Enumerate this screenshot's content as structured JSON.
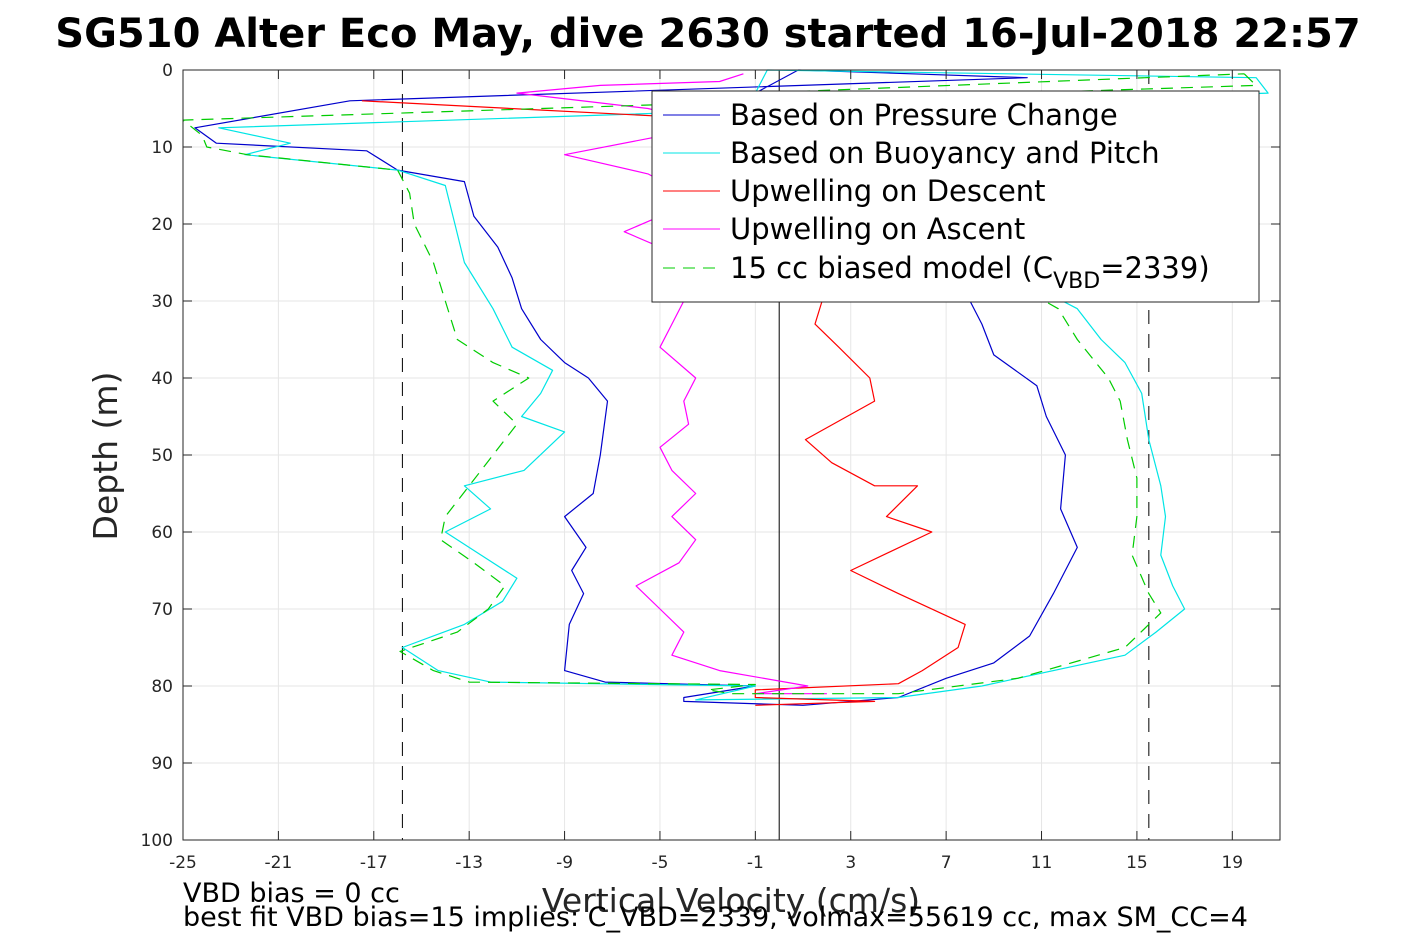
{
  "chart_data": {
    "type": "line",
    "title": "SG510 Alter Eco May, dive 2630 started 16-Jul-2018 22:57",
    "xlabel": "Vertical Velocity (cm/s)",
    "ylabel": "Depth (m)",
    "xlim": [
      -25,
      21
    ],
    "ylim": [
      0,
      100
    ],
    "y_reversed": true,
    "grid": true,
    "xticks": [
      -25,
      -21,
      -17,
      -13,
      -9,
      -5,
      -1,
      3,
      7,
      11,
      15,
      19
    ],
    "yticks": [
      0,
      10,
      20,
      30,
      40,
      50,
      60,
      70,
      80,
      90,
      100
    ],
    "vlines": [
      {
        "x": -15.8,
        "style": "dashed",
        "color": "#000000"
      },
      {
        "x": 15.5,
        "style": "dashed",
        "color": "#000000"
      },
      {
        "x": 0.0,
        "style": "solid",
        "color": "#000000"
      }
    ],
    "legend_position": "top-right",
    "series": [
      {
        "name": "Based on Pressure Change",
        "color": "#0000cc",
        "dash": "solid",
        "points": [
          [
            0.8,
            0
          ],
          [
            10.4,
            1
          ],
          [
            -18,
            4
          ],
          [
            -24.5,
            7.5
          ],
          [
            -23.6,
            9.5
          ],
          [
            -17.3,
            10.5
          ],
          [
            -16,
            13
          ],
          [
            -13.2,
            14.5
          ],
          [
            -12.8,
            19
          ],
          [
            -11.8,
            23
          ],
          [
            -11.2,
            27
          ],
          [
            -10.8,
            31
          ],
          [
            -10,
            35
          ],
          [
            -9,
            38
          ],
          [
            -8,
            40
          ],
          [
            -7.2,
            43
          ],
          [
            -7.5,
            50
          ],
          [
            -7.8,
            55
          ],
          [
            -9,
            58
          ],
          [
            -8.1,
            62
          ],
          [
            -8.7,
            65
          ],
          [
            -8.2,
            68
          ],
          [
            -8.8,
            72
          ],
          [
            -9,
            78
          ],
          [
            -7.3,
            79.5
          ],
          [
            -1,
            80
          ],
          [
            -4,
            81.5
          ],
          [
            -4,
            82
          ],
          [
            1,
            82.5
          ],
          [
            5,
            81.5
          ],
          [
            7,
            79
          ],
          [
            9,
            77
          ],
          [
            10.5,
            73.5
          ],
          [
            11.5,
            68
          ],
          [
            12.5,
            62
          ],
          [
            11.8,
            57
          ],
          [
            12,
            50
          ],
          [
            11.2,
            45
          ],
          [
            10.8,
            41
          ],
          [
            9,
            37
          ],
          [
            8.5,
            33
          ],
          [
            8,
            30
          ],
          [
            2,
            14
          ],
          [
            -1,
            3
          ],
          [
            0.8,
            0
          ]
        ]
      },
      {
        "name": "Based on Buoyancy and Pitch",
        "color": "#00e5e5",
        "dash": "solid",
        "points": [
          [
            -0.5,
            0
          ],
          [
            20,
            1
          ],
          [
            20.5,
            3
          ],
          [
            -23.5,
            7.5
          ],
          [
            -20.5,
            9.5
          ],
          [
            -22.4,
            11
          ],
          [
            -16,
            13
          ],
          [
            -14,
            15
          ],
          [
            -13.6,
            20
          ],
          [
            -13.2,
            25
          ],
          [
            -12,
            31
          ],
          [
            -11.2,
            36
          ],
          [
            -9.5,
            39
          ],
          [
            -10,
            42
          ],
          [
            -10.8,
            45
          ],
          [
            -9,
            47
          ],
          [
            -10.7,
            52
          ],
          [
            -13.2,
            54
          ],
          [
            -12.1,
            57
          ],
          [
            -14,
            60
          ],
          [
            -12.5,
            63
          ],
          [
            -11,
            66
          ],
          [
            -11.6,
            69
          ],
          [
            -13.2,
            72
          ],
          [
            -15.8,
            75
          ],
          [
            -14.3,
            78
          ],
          [
            -12.1,
            79.5
          ],
          [
            -1,
            80
          ],
          [
            -3.5,
            81.8
          ],
          [
            5,
            81.5
          ],
          [
            8.5,
            80
          ],
          [
            14.5,
            76
          ],
          [
            15.8,
            73
          ],
          [
            17,
            70
          ],
          [
            16.5,
            67
          ],
          [
            16,
            63
          ],
          [
            16.2,
            58
          ],
          [
            16,
            54
          ],
          [
            15.5,
            48
          ],
          [
            15.2,
            42
          ],
          [
            14.5,
            38
          ],
          [
            13.5,
            35
          ],
          [
            12.5,
            31
          ],
          [
            2,
            14
          ],
          [
            -1,
            3
          ],
          [
            -0.5,
            0
          ]
        ]
      },
      {
        "name": "Upwelling on Descent",
        "color": "#ff0000",
        "dash": "solid",
        "points": [
          [
            -17.5,
            4
          ],
          [
            -5,
            6
          ],
          [
            0,
            8
          ],
          [
            1,
            10
          ],
          [
            2,
            14
          ],
          [
            2.5,
            20
          ],
          [
            2,
            25
          ],
          [
            1.8,
            30
          ],
          [
            1.5,
            33
          ],
          [
            2.5,
            36
          ],
          [
            3.8,
            40
          ],
          [
            4,
            43
          ],
          [
            1.1,
            48
          ],
          [
            2.2,
            51
          ],
          [
            4,
            54
          ],
          [
            5.8,
            54
          ],
          [
            4.5,
            58
          ],
          [
            6.4,
            60
          ],
          [
            3,
            65
          ],
          [
            5,
            68
          ],
          [
            7.8,
            72
          ],
          [
            7.5,
            75
          ],
          [
            6,
            78
          ],
          [
            5,
            79.7
          ],
          [
            -1,
            80.5
          ],
          [
            -1,
            81.5
          ],
          [
            4,
            82
          ],
          [
            -1,
            82.5
          ]
        ]
      },
      {
        "name": "Upwelling on Ascent",
        "color": "#ff00ff",
        "dash": "solid",
        "points": [
          [
            -1.5,
            0.5
          ],
          [
            -2.5,
            1.5
          ],
          [
            -7.5,
            2
          ],
          [
            -11,
            3
          ],
          [
            -5.5,
            5
          ],
          [
            -3.5,
            6.5
          ],
          [
            -4,
            8
          ],
          [
            -9,
            11
          ],
          [
            -5.5,
            13.5
          ],
          [
            -4,
            16
          ],
          [
            -5,
            19
          ],
          [
            -6.5,
            21
          ],
          [
            -5,
            23
          ],
          [
            -4,
            25
          ],
          [
            -3.5,
            27
          ],
          [
            -4,
            30
          ],
          [
            -4.5,
            33
          ],
          [
            -5,
            36
          ],
          [
            -3.5,
            40
          ],
          [
            -4,
            43
          ],
          [
            -3.8,
            46
          ],
          [
            -5,
            49
          ],
          [
            -4.5,
            52
          ],
          [
            -3.5,
            55
          ],
          [
            -4.5,
            58
          ],
          [
            -3.5,
            61
          ],
          [
            -4.2,
            64
          ],
          [
            -6,
            67
          ],
          [
            -5,
            70
          ],
          [
            -4,
            73
          ],
          [
            -4.5,
            76
          ],
          [
            -2.5,
            78
          ],
          [
            1.2,
            80
          ],
          [
            -1,
            81
          ],
          [
            2,
            81
          ]
        ]
      },
      {
        "name": "15 cc biased model (C_VBD=2339)",
        "color": "#00cc00",
        "dash": "dashed",
        "points": [
          [
            19.5,
            0.5
          ],
          [
            20,
            2
          ],
          [
            -25,
            6.5
          ],
          [
            -24.2,
            8.5
          ],
          [
            -24,
            10
          ],
          [
            -22.3,
            11
          ],
          [
            -16,
            13
          ],
          [
            -15.5,
            16
          ],
          [
            -15.3,
            20
          ],
          [
            -14.5,
            25
          ],
          [
            -14,
            30
          ],
          [
            -13.5,
            35
          ],
          [
            -12,
            38
          ],
          [
            -10.5,
            40
          ],
          [
            -12,
            43
          ],
          [
            -11,
            46
          ],
          [
            -12,
            50
          ],
          [
            -13,
            54
          ],
          [
            -14,
            58
          ],
          [
            -14.2,
            61
          ],
          [
            -12.8,
            64
          ],
          [
            -11.5,
            67
          ],
          [
            -12.2,
            70
          ],
          [
            -13.5,
            73
          ],
          [
            -15.9,
            75.5
          ],
          [
            -14.5,
            78
          ],
          [
            -13,
            79.5
          ],
          [
            -1,
            79.8
          ],
          [
            -3,
            80.5
          ],
          [
            -2,
            81
          ],
          [
            5,
            81
          ],
          [
            10,
            79
          ],
          [
            14.5,
            75
          ],
          [
            16,
            70.5
          ],
          [
            15.5,
            68
          ],
          [
            14.8,
            63
          ],
          [
            15,
            58
          ],
          [
            15,
            53
          ],
          [
            14.6,
            48
          ],
          [
            14.3,
            43
          ],
          [
            13.8,
            40
          ],
          [
            12.5,
            35
          ],
          [
            11.7,
            31
          ],
          [
            2,
            14
          ],
          [
            -1,
            3
          ],
          [
            19.5,
            0.5
          ]
        ]
      }
    ]
  },
  "legend": {
    "items": [
      {
        "label": "Based on Pressure Change",
        "color": "#0000cc",
        "dash": "solid"
      },
      {
        "label": "Based on Buoyancy and Pitch",
        "color": "#00e5e5",
        "dash": "solid"
      },
      {
        "label": "Upwelling on Descent",
        "color": "#ff0000",
        "dash": "solid"
      },
      {
        "label": "Upwelling on Ascent",
        "color": "#ff00ff",
        "dash": "solid"
      },
      {
        "label_prefix": "15 cc biased model (C",
        "label_sub": "VBD",
        "label_suffix": "=2339)",
        "color": "#00cc00",
        "dash": "dashed"
      }
    ]
  },
  "footer": {
    "line1": "VBD bias = 0 cc",
    "line2": "best fit VBD bias=15 implies: C_VBD=2339, volmax=55619 cc, max SM_CC=4"
  }
}
